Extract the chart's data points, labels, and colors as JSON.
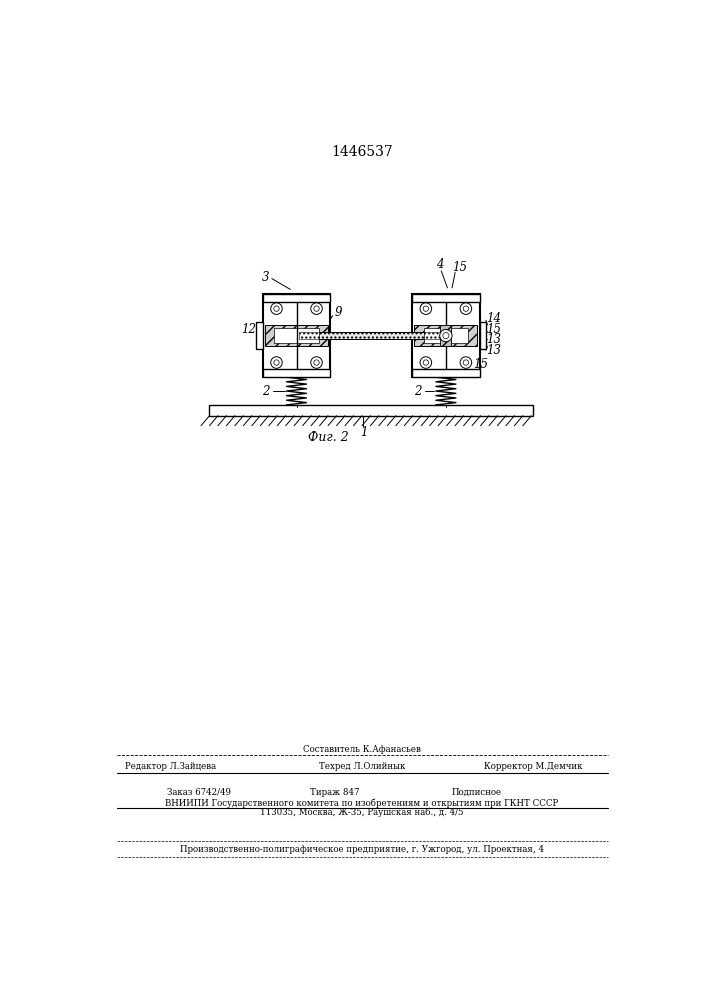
{
  "title": "1446537",
  "fig_label": "Фиг. 2",
  "bg_color": "#ffffff",
  "line_color": "#000000",
  "footer_col1_line1": "Составитель К.Афанасьев",
  "footer_editor": "Редактор Л.Зайцева",
  "footer_tekhred": "Техред Л.Олийнык",
  "footer_korrektor": "Корректор М.Демчик",
  "footer_zakaz": "Заказ 6742/49",
  "footer_tirazh": "Тираж 847",
  "footer_podpisnoe": "Подписное",
  "footer_vniipи": "ВНИИПИ Государственного комитета по изобретениям и открытиям при ГКНТ СССР",
  "footer_address": "113035, Москва, Ж-35, Раушская наб., д. 4/5",
  "footer_proizv": "Производственно-полиграфическое предприятие, г. Ужгород, ул. Проектная, 4"
}
